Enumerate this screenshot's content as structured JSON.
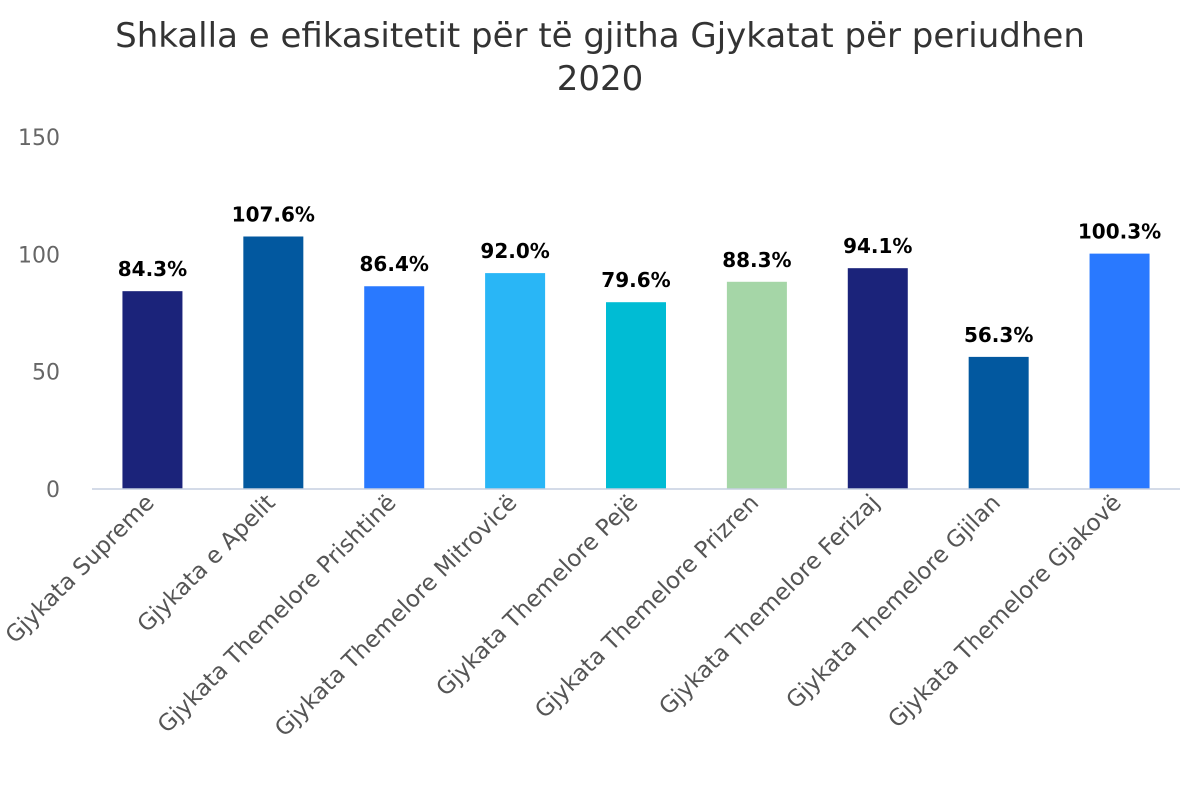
{
  "chart_data": {
    "type": "bar",
    "title_lines": [
      "Shkalla e efikasitetit për të gjitha Gjykatat për periudhen",
      "2020"
    ],
    "categories": [
      "Gjykata Supreme",
      "Gjykata e Apelit",
      "Gjykata Themelore Prishtinë",
      "Gjykata Themelore Mitrovicë",
      "Gjykata Themelore Pejë",
      "Gjykata Themelore Prizren",
      "Gjykata Themelore Ferizaj",
      "Gjykata Themelore Gjilan",
      "Gjykata Themelore Gjakovë"
    ],
    "values": [
      84.3,
      107.6,
      86.4,
      92.0,
      79.6,
      88.3,
      94.1,
      56.3,
      100.3
    ],
    "data_labels": [
      "84.3%",
      "107.6%",
      "86.4%",
      "92.0%",
      "79.6%",
      "88.3%",
      "94.1%",
      "56.3%",
      "100.3%"
    ],
    "colors": [
      "#1b237a",
      "#02589f",
      "#2979ff",
      "#29b6f6",
      "#00bcd4",
      "#a5d6a7",
      "#1b237a",
      "#02589f",
      "#2979ff"
    ],
    "yticks": [
      0,
      50,
      100,
      150
    ],
    "ylim": [
      0,
      150
    ],
    "xlabel": "",
    "ylabel": "",
    "grid": false,
    "legend": false
  }
}
